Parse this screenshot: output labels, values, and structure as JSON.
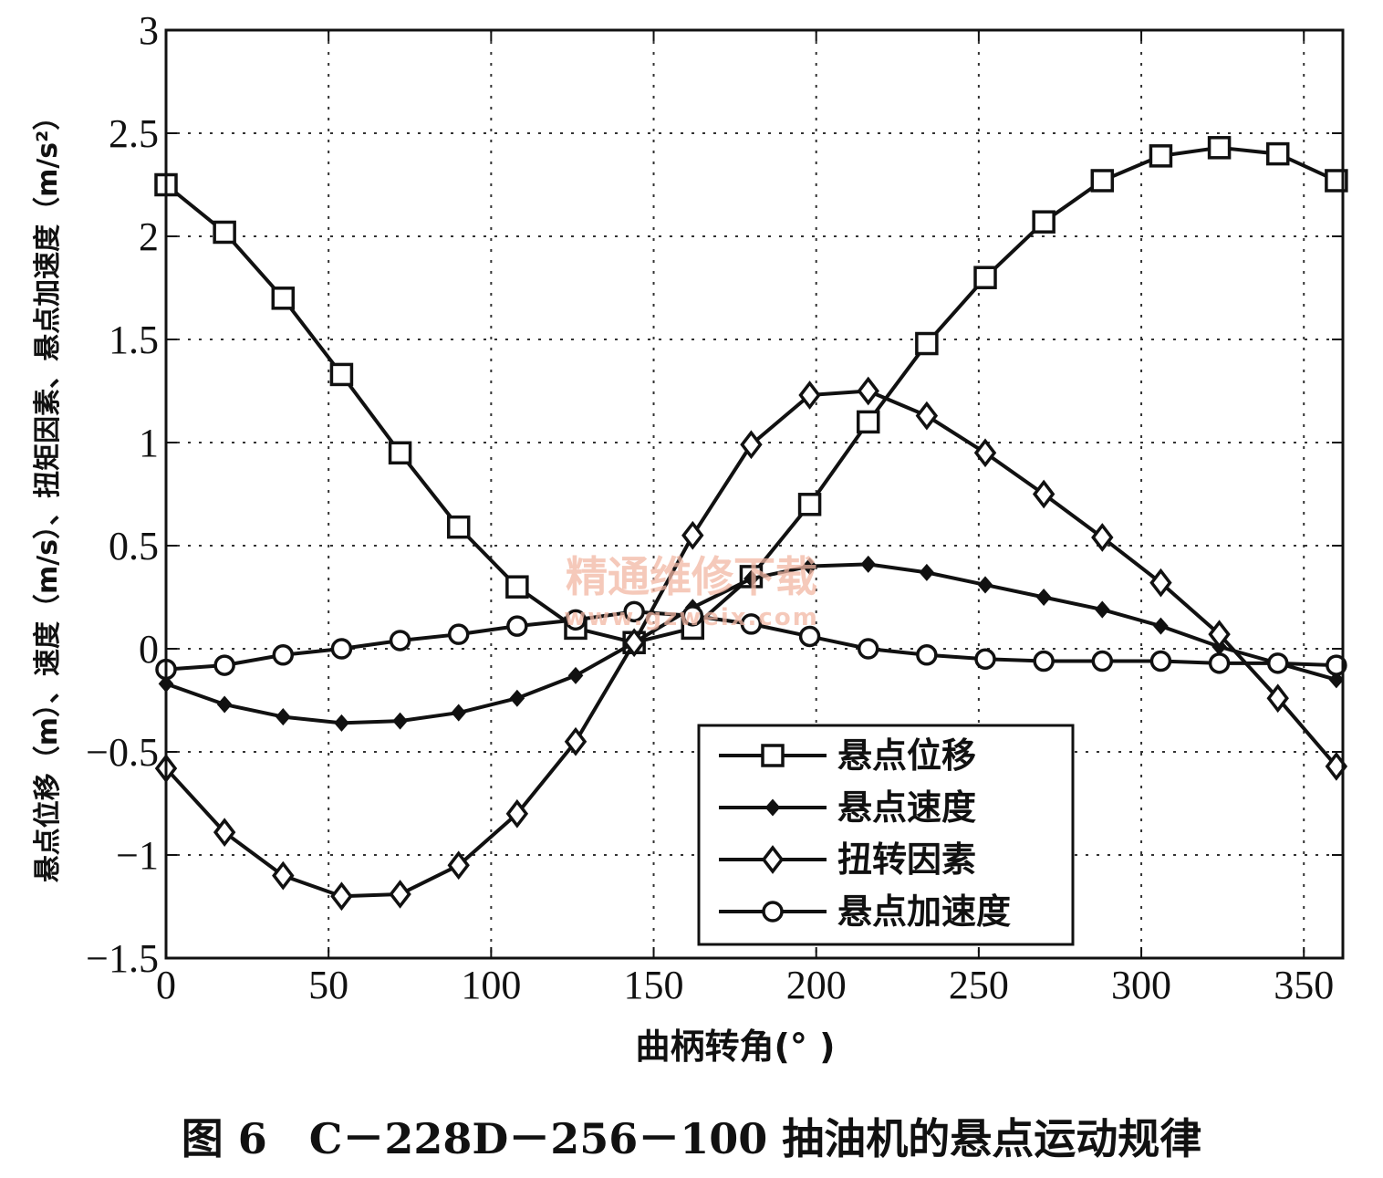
{
  "caption": "图 6　C－228D－256－100 抽油机的悬点运动规律",
  "watermark": {
    "text": "精通维修下载",
    "url": "www.gzweix.com"
  },
  "chart_data": {
    "type": "line",
    "xlabel": "曲柄转角(°  )",
    "ylabel": "悬点位移（m）、速度（m/s）、扭矩因素、悬点加速度（m/s²）",
    "xlim": [
      0,
      362
    ],
    "ylim": [
      -1.5,
      3
    ],
    "xticks": [
      0,
      50,
      100,
      150,
      200,
      250,
      300,
      350
    ],
    "yticks": [
      -1.5,
      -1,
      -0.5,
      0,
      0.5,
      1,
      1.5,
      2,
      2.5,
      3
    ],
    "ytick_labels": [
      "−1.5",
      "−1",
      "−0.5",
      "0",
      "0.5",
      "1",
      "1.5",
      "2",
      "2.5",
      "3"
    ],
    "grid": true,
    "legend_position": "lower-right",
    "x": [
      0,
      18,
      36,
      54,
      72,
      90,
      108,
      126,
      144,
      162,
      180,
      198,
      216,
      234,
      252,
      270,
      288,
      306,
      324,
      342,
      360
    ],
    "series": [
      {
        "name": "悬点位移",
        "marker": "square",
        "values": [
          2.25,
          2.02,
          1.7,
          1.33,
          0.95,
          0.59,
          0.3,
          0.1,
          0.03,
          0.1,
          0.35,
          0.7,
          1.1,
          1.48,
          1.8,
          2.07,
          2.27,
          2.39,
          2.43,
          2.4,
          2.27
        ]
      },
      {
        "name": "悬点速度",
        "marker": "dot",
        "values": [
          -0.17,
          -0.27,
          -0.33,
          -0.36,
          -0.35,
          -0.31,
          -0.24,
          -0.13,
          0.03,
          0.2,
          0.34,
          0.4,
          0.41,
          0.37,
          0.31,
          0.25,
          0.19,
          0.11,
          0.01,
          -0.07,
          -0.15
        ]
      },
      {
        "name": "扭转因素",
        "marker": "diamond",
        "values": [
          -0.58,
          -0.89,
          -1.1,
          -1.2,
          -1.19,
          -1.05,
          -0.8,
          -0.45,
          0.03,
          0.55,
          0.99,
          1.23,
          1.25,
          1.13,
          0.95,
          0.75,
          0.54,
          0.32,
          0.07,
          -0.24,
          -0.57
        ]
      },
      {
        "name": "悬点加速度",
        "marker": "circle",
        "values": [
          -0.1,
          -0.08,
          -0.03,
          0.0,
          0.04,
          0.07,
          0.11,
          0.14,
          0.18,
          0.16,
          0.12,
          0.06,
          0.0,
          -0.03,
          -0.05,
          -0.06,
          -0.06,
          -0.06,
          -0.07,
          -0.07,
          -0.08
        ]
      }
    ]
  }
}
